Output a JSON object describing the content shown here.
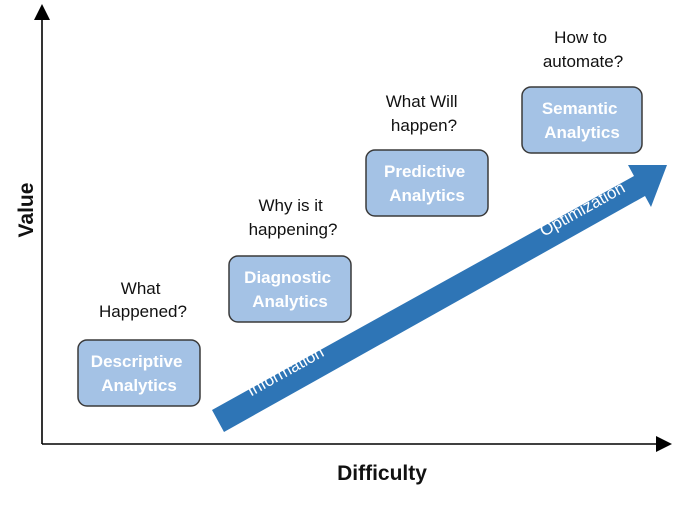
{
  "axes": {
    "x_label": "Difficulty",
    "y_label": "Value"
  },
  "stages": [
    {
      "question_lines": [
        "What",
        "Happened?"
      ],
      "box_lines": [
        "Descriptive",
        "Analytics"
      ]
    },
    {
      "question_lines": [
        "Why is it",
        "happening?"
      ],
      "box_lines": [
        "Diagnostic",
        "Analytics"
      ]
    },
    {
      "question_lines": [
        "What Will",
        "happen?"
      ],
      "box_lines": [
        "Predictive",
        "Analytics"
      ]
    },
    {
      "question_lines": [
        "How to",
        "automate?"
      ],
      "box_lines": [
        "Semantic",
        "Analytics"
      ]
    }
  ],
  "arrow": {
    "label_start": "Information",
    "label_end": "Optimization"
  },
  "colors": {
    "box_fill": "#a4c2e5",
    "box_stroke": "#3a3a3a",
    "box_text": "#ffffff",
    "arrow_fill": "#2e75b6",
    "arrow_text": "#ffffff",
    "axis": "#000000",
    "text": "#111111"
  }
}
